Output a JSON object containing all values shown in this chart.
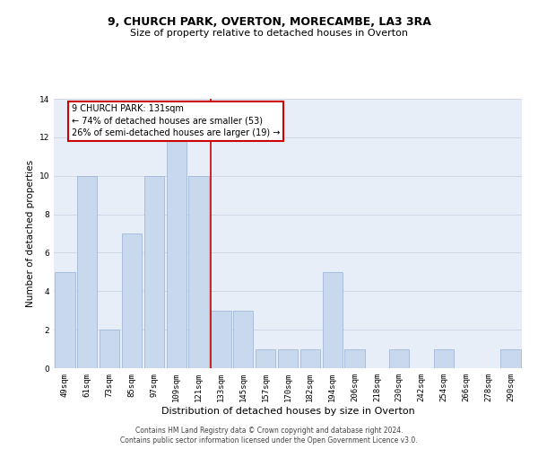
{
  "title": "9, CHURCH PARK, OVERTON, MORECAMBE, LA3 3RA",
  "subtitle": "Size of property relative to detached houses in Overton",
  "xlabel": "Distribution of detached houses by size in Overton",
  "ylabel": "Number of detached properties",
  "categories": [
    "49sqm",
    "61sqm",
    "73sqm",
    "85sqm",
    "97sqm",
    "109sqm",
    "121sqm",
    "133sqm",
    "145sqm",
    "157sqm",
    "170sqm",
    "182sqm",
    "194sqm",
    "206sqm",
    "218sqm",
    "230sqm",
    "242sqm",
    "254sqm",
    "266sqm",
    "278sqm",
    "290sqm"
  ],
  "values": [
    5,
    10,
    2,
    7,
    10,
    12,
    10,
    3,
    3,
    1,
    1,
    1,
    5,
    1,
    0,
    1,
    0,
    1,
    0,
    0,
    1
  ],
  "bar_color": "#c9d9ed",
  "bar_edgecolor": "#a0b8d8",
  "redline_color": "#cc0000",
  "annotation_text": "9 CHURCH PARK: 131sqm\n← 74% of detached houses are smaller (53)\n26% of semi-detached houses are larger (19) →",
  "annotation_box_color": "#ffffff",
  "annotation_box_edgecolor": "#cc0000",
  "grid_color": "#d0d8e8",
  "background_color": "#e8eef8",
  "footer_line1": "Contains HM Land Registry data © Crown copyright and database right 2024.",
  "footer_line2": "Contains public sector information licensed under the Open Government Licence v3.0.",
  "ylim": [
    0,
    14
  ],
  "yticks": [
    0,
    2,
    4,
    6,
    8,
    10,
    12,
    14
  ],
  "title_fontsize": 9,
  "subtitle_fontsize": 8,
  "xlabel_fontsize": 8,
  "ylabel_fontsize": 7.5,
  "tick_fontsize": 6.5,
  "annotation_fontsize": 7,
  "footer_fontsize": 5.5
}
